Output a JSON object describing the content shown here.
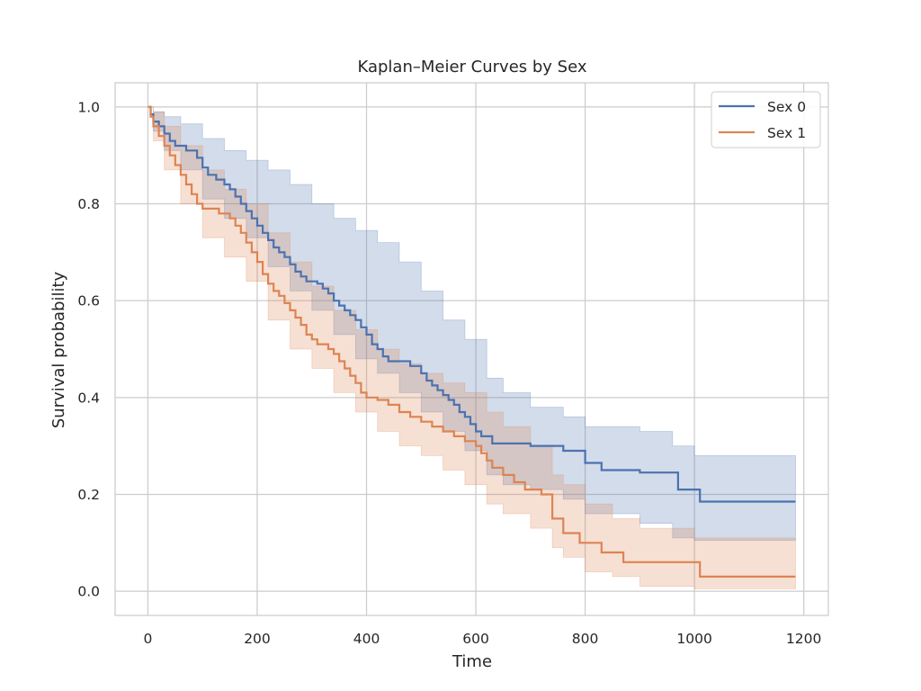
{
  "chart_data": {
    "type": "line",
    "title": "Kaplan–Meier Curves by Sex",
    "xlabel": "Time",
    "ylabel": "Survival probability",
    "xlim": [
      -60,
      1245
    ],
    "ylim": [
      -0.05,
      1.05
    ],
    "xticks": [
      0,
      200,
      400,
      600,
      800,
      1000,
      1200
    ],
    "yticks": [
      0.0,
      0.2,
      0.4,
      0.6,
      0.8,
      1.0
    ],
    "xtick_labels": [
      "0",
      "200",
      "400",
      "600",
      "800",
      "1000",
      "1200"
    ],
    "ytick_labels": [
      "0.0",
      "0.2",
      "0.4",
      "0.6",
      "0.8",
      "1.0"
    ],
    "grid": true,
    "legend_position": "top-right",
    "series": [
      {
        "name": "Sex 0",
        "color": "#4c72b0",
        "step": true,
        "points": [
          [
            0,
            1.0
          ],
          [
            5,
            0.985
          ],
          [
            10,
            0.97
          ],
          [
            20,
            0.96
          ],
          [
            30,
            0.945
          ],
          [
            40,
            0.93
          ],
          [
            50,
            0.92
          ],
          [
            70,
            0.91
          ],
          [
            90,
            0.895
          ],
          [
            100,
            0.875
          ],
          [
            110,
            0.86
          ],
          [
            125,
            0.85
          ],
          [
            140,
            0.84
          ],
          [
            150,
            0.83
          ],
          [
            160,
            0.815
          ],
          [
            170,
            0.8
          ],
          [
            180,
            0.785
          ],
          [
            190,
            0.77
          ],
          [
            200,
            0.755
          ],
          [
            210,
            0.74
          ],
          [
            220,
            0.725
          ],
          [
            230,
            0.71
          ],
          [
            240,
            0.7
          ],
          [
            250,
            0.69
          ],
          [
            260,
            0.675
          ],
          [
            270,
            0.66
          ],
          [
            280,
            0.65
          ],
          [
            290,
            0.64
          ],
          [
            310,
            0.635
          ],
          [
            320,
            0.625
          ],
          [
            330,
            0.615
          ],
          [
            340,
            0.6
          ],
          [
            350,
            0.59
          ],
          [
            360,
            0.58
          ],
          [
            370,
            0.57
          ],
          [
            380,
            0.56
          ],
          [
            390,
            0.545
          ],
          [
            400,
            0.53
          ],
          [
            410,
            0.51
          ],
          [
            420,
            0.5
          ],
          [
            430,
            0.485
          ],
          [
            440,
            0.475
          ],
          [
            480,
            0.465
          ],
          [
            500,
            0.45
          ],
          [
            510,
            0.435
          ],
          [
            520,
            0.425
          ],
          [
            530,
            0.415
          ],
          [
            540,
            0.405
          ],
          [
            550,
            0.395
          ],
          [
            560,
            0.385
          ],
          [
            570,
            0.37
          ],
          [
            580,
            0.36
          ],
          [
            590,
            0.345
          ],
          [
            600,
            0.33
          ],
          [
            610,
            0.32
          ],
          [
            630,
            0.305
          ],
          [
            700,
            0.3
          ],
          [
            760,
            0.29
          ],
          [
            800,
            0.265
          ],
          [
            830,
            0.25
          ],
          [
            900,
            0.245
          ],
          [
            970,
            0.21
          ],
          [
            1010,
            0.185
          ],
          [
            1185,
            0.185
          ]
        ],
        "ci_upper": [
          [
            0,
            1.0
          ],
          [
            10,
            0.99
          ],
          [
            30,
            0.98
          ],
          [
            60,
            0.965
          ],
          [
            100,
            0.935
          ],
          [
            140,
            0.91
          ],
          [
            180,
            0.89
          ],
          [
            220,
            0.87
          ],
          [
            260,
            0.84
          ],
          [
            300,
            0.8
          ],
          [
            340,
            0.77
          ],
          [
            380,
            0.745
          ],
          [
            420,
            0.72
          ],
          [
            460,
            0.68
          ],
          [
            500,
            0.62
          ],
          [
            540,
            0.56
          ],
          [
            580,
            0.52
          ],
          [
            620,
            0.44
          ],
          [
            650,
            0.41
          ],
          [
            700,
            0.38
          ],
          [
            760,
            0.36
          ],
          [
            800,
            0.34
          ],
          [
            900,
            0.33
          ],
          [
            960,
            0.3
          ],
          [
            1000,
            0.28
          ],
          [
            1185,
            0.28
          ]
        ],
        "ci_lower": [
          [
            0,
            1.0
          ],
          [
            10,
            0.95
          ],
          [
            30,
            0.91
          ],
          [
            60,
            0.87
          ],
          [
            100,
            0.81
          ],
          [
            140,
            0.77
          ],
          [
            180,
            0.73
          ],
          [
            220,
            0.67
          ],
          [
            260,
            0.62
          ],
          [
            300,
            0.58
          ],
          [
            340,
            0.53
          ],
          [
            380,
            0.48
          ],
          [
            420,
            0.45
          ],
          [
            460,
            0.41
          ],
          [
            500,
            0.37
          ],
          [
            540,
            0.33
          ],
          [
            580,
            0.29
          ],
          [
            620,
            0.24
          ],
          [
            650,
            0.22
          ],
          [
            700,
            0.21
          ],
          [
            760,
            0.19
          ],
          [
            800,
            0.16
          ],
          [
            900,
            0.14
          ],
          [
            960,
            0.11
          ],
          [
            1000,
            0.105
          ],
          [
            1185,
            0.105
          ]
        ]
      },
      {
        "name": "Sex 1",
        "color": "#dd8452",
        "step": true,
        "points": [
          [
            0,
            1.0
          ],
          [
            5,
            0.98
          ],
          [
            10,
            0.96
          ],
          [
            20,
            0.94
          ],
          [
            30,
            0.92
          ],
          [
            40,
            0.9
          ],
          [
            50,
            0.88
          ],
          [
            60,
            0.86
          ],
          [
            70,
            0.84
          ],
          [
            80,
            0.82
          ],
          [
            90,
            0.8
          ],
          [
            100,
            0.79
          ],
          [
            130,
            0.78
          ],
          [
            150,
            0.77
          ],
          [
            160,
            0.755
          ],
          [
            170,
            0.74
          ],
          [
            180,
            0.72
          ],
          [
            190,
            0.7
          ],
          [
            200,
            0.68
          ],
          [
            210,
            0.655
          ],
          [
            220,
            0.635
          ],
          [
            230,
            0.62
          ],
          [
            240,
            0.61
          ],
          [
            250,
            0.595
          ],
          [
            260,
            0.58
          ],
          [
            270,
            0.565
          ],
          [
            280,
            0.55
          ],
          [
            290,
            0.53
          ],
          [
            300,
            0.52
          ],
          [
            310,
            0.51
          ],
          [
            330,
            0.5
          ],
          [
            340,
            0.49
          ],
          [
            350,
            0.475
          ],
          [
            360,
            0.46
          ],
          [
            370,
            0.445
          ],
          [
            380,
            0.43
          ],
          [
            390,
            0.41
          ],
          [
            400,
            0.4
          ],
          [
            420,
            0.395
          ],
          [
            440,
            0.385
          ],
          [
            460,
            0.37
          ],
          [
            480,
            0.36
          ],
          [
            500,
            0.35
          ],
          [
            520,
            0.34
          ],
          [
            540,
            0.33
          ],
          [
            560,
            0.32
          ],
          [
            580,
            0.31
          ],
          [
            600,
            0.3
          ],
          [
            610,
            0.285
          ],
          [
            620,
            0.27
          ],
          [
            630,
            0.255
          ],
          [
            650,
            0.24
          ],
          [
            670,
            0.225
          ],
          [
            690,
            0.21
          ],
          [
            720,
            0.2
          ],
          [
            740,
            0.15
          ],
          [
            760,
            0.12
          ],
          [
            790,
            0.1
          ],
          [
            830,
            0.08
          ],
          [
            870,
            0.06
          ],
          [
            1010,
            0.03
          ],
          [
            1185,
            0.03
          ]
        ],
        "ci_upper": [
          [
            0,
            1.0
          ],
          [
            10,
            0.99
          ],
          [
            30,
            0.96
          ],
          [
            60,
            0.92
          ],
          [
            100,
            0.87
          ],
          [
            140,
            0.83
          ],
          [
            180,
            0.8
          ],
          [
            220,
            0.74
          ],
          [
            260,
            0.68
          ],
          [
            300,
            0.63
          ],
          [
            340,
            0.58
          ],
          [
            380,
            0.54
          ],
          [
            420,
            0.5
          ],
          [
            460,
            0.47
          ],
          [
            500,
            0.45
          ],
          [
            540,
            0.43
          ],
          [
            580,
            0.41
          ],
          [
            620,
            0.37
          ],
          [
            650,
            0.34
          ],
          [
            700,
            0.3
          ],
          [
            740,
            0.24
          ],
          [
            760,
            0.22
          ],
          [
            800,
            0.18
          ],
          [
            850,
            0.15
          ],
          [
            900,
            0.13
          ],
          [
            1000,
            0.11
          ],
          [
            1185,
            0.11
          ]
        ],
        "ci_lower": [
          [
            0,
            1.0
          ],
          [
            10,
            0.93
          ],
          [
            30,
            0.87
          ],
          [
            60,
            0.8
          ],
          [
            100,
            0.73
          ],
          [
            140,
            0.69
          ],
          [
            180,
            0.64
          ],
          [
            220,
            0.56
          ],
          [
            260,
            0.5
          ],
          [
            300,
            0.46
          ],
          [
            340,
            0.41
          ],
          [
            380,
            0.37
          ],
          [
            420,
            0.33
          ],
          [
            460,
            0.3
          ],
          [
            500,
            0.28
          ],
          [
            540,
            0.25
          ],
          [
            580,
            0.22
          ],
          [
            620,
            0.18
          ],
          [
            650,
            0.16
          ],
          [
            700,
            0.13
          ],
          [
            740,
            0.09
          ],
          [
            760,
            0.07
          ],
          [
            800,
            0.04
          ],
          [
            850,
            0.03
          ],
          [
            900,
            0.01
          ],
          [
            1000,
            0.005
          ],
          [
            1185,
            0.005
          ]
        ]
      }
    ]
  }
}
